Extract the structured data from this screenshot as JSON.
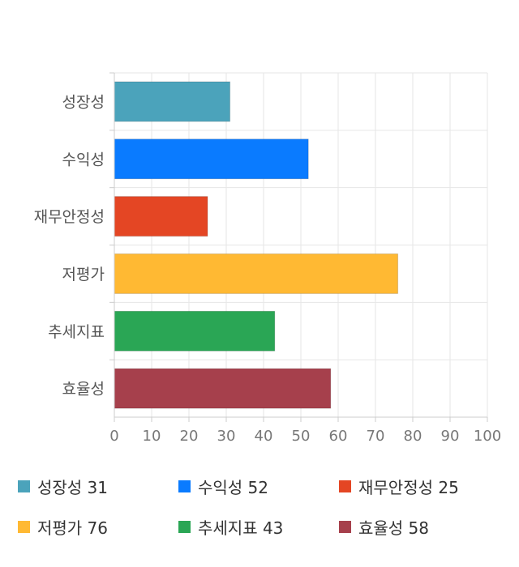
{
  "chart_data": {
    "type": "bar",
    "orientation": "horizontal",
    "categories": [
      "성장성",
      "수익성",
      "재무안정성",
      "저평가",
      "추세지표",
      "효율성"
    ],
    "values": [
      31,
      52,
      25,
      76,
      43,
      58
    ],
    "colors": [
      "#4ba3bb",
      "#0a7bff",
      "#e44624",
      "#ffb933",
      "#2aa655",
      "#a6404c"
    ],
    "xlim": [
      0,
      100
    ],
    "xticks": [
      0,
      10,
      20,
      30,
      40,
      50,
      60,
      70,
      80,
      90,
      100
    ],
    "grid": true,
    "legend_position": "bottom",
    "title": "",
    "xlabel": "",
    "ylabel": ""
  },
  "legend": [
    {
      "label": "성장성 31"
    },
    {
      "label": "수익성 52"
    },
    {
      "label": "재무안정성 25"
    },
    {
      "label": "저평가 76"
    },
    {
      "label": "추세지표 43"
    },
    {
      "label": "효율성 58"
    }
  ]
}
